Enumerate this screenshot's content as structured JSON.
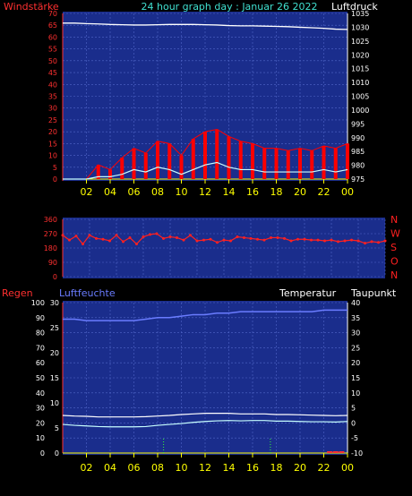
{
  "header": {
    "left_label": "Windstärke",
    "center_title": "24 hour graph day : Januar 26 2022",
    "right_label": "Luftdruck"
  },
  "colors": {
    "background": "#000000",
    "plot_bg": "#1a2d8c",
    "grid": "#5066c8",
    "hour_ticks": "#ffff00",
    "wind_axis": "#ff3030",
    "wind_gust": "#ff0000",
    "wind_avg": "#c8ffff",
    "pressure": "#ffffff",
    "direction_labels": "#ff2020",
    "humidity": "#6a7cff",
    "temperature": "#ffffff",
    "dewpoint": "#c8ffff",
    "rain": "#33ff33"
  },
  "chart_data": [
    {
      "type": "line",
      "name_left_axis": "Windstärke",
      "name_right_axis": "Luftdruck",
      "x_ticks": [
        "02",
        "04",
        "06",
        "08",
        "10",
        "12",
        "14",
        "16",
        "18",
        "20",
        "22",
        "00"
      ],
      "left_ylim": [
        0,
        70
      ],
      "left_ticks": [
        "0",
        "5",
        "10",
        "15",
        "20",
        "25",
        "30",
        "35",
        "40",
        "45",
        "50",
        "55",
        "60",
        "65",
        "70"
      ],
      "right_ylim": [
        975,
        1035
      ],
      "right_ticks": [
        "975",
        "980",
        "985",
        "990",
        "995",
        "1000",
        "1005",
        "1010",
        "1015",
        "1020",
        "1025",
        "1030",
        "1035"
      ],
      "series": [
        {
          "key": "pressure",
          "axis": "right",
          "x": [
            0,
            1,
            2,
            3,
            4,
            5,
            6,
            7,
            8,
            9,
            10,
            11,
            12,
            13,
            14,
            15,
            16,
            17,
            18,
            19,
            20,
            21,
            22,
            23,
            24
          ],
          "values": [
            1031.5,
            1031.5,
            1031.3,
            1031.2,
            1031.0,
            1030.9,
            1030.8,
            1030.8,
            1030.9,
            1031.0,
            1031.0,
            1031.0,
            1030.9,
            1030.8,
            1030.6,
            1030.5,
            1030.5,
            1030.4,
            1030.3,
            1030.2,
            1030.0,
            1029.8,
            1029.6,
            1029.3,
            1029.2
          ]
        },
        {
          "key": "gust",
          "axis": "left",
          "x": [
            0,
            1,
            2,
            3,
            4,
            5,
            6,
            7,
            8,
            9,
            10,
            11,
            12,
            13,
            14,
            15,
            16,
            17,
            18,
            19,
            20,
            21,
            22,
            23,
            24
          ],
          "values": [
            0,
            0,
            0,
            6,
            4,
            9,
            13,
            11,
            16,
            15,
            10,
            17,
            20,
            21,
            18,
            16,
            15,
            13,
            13,
            12,
            13,
            12,
            14,
            13,
            15
          ]
        },
        {
          "key": "average",
          "axis": "left",
          "x": [
            0,
            1,
            2,
            3,
            4,
            5,
            6,
            7,
            8,
            9,
            10,
            11,
            12,
            13,
            14,
            15,
            16,
            17,
            18,
            19,
            20,
            21,
            22,
            23,
            24
          ],
          "values": [
            0,
            0,
            0,
            1,
            1,
            2,
            4,
            3,
            5,
            4,
            2,
            4,
            6,
            7,
            5,
            4,
            4,
            3,
            3,
            3,
            3,
            3,
            4,
            3,
            4
          ]
        }
      ]
    },
    {
      "type": "scatter",
      "name_right_axis_labels": [
        "N",
        "W",
        "S",
        "O",
        "N"
      ],
      "x_ticks": [
        "02",
        "04",
        "06",
        "08",
        "10",
        "12",
        "14",
        "16",
        "18",
        "20",
        "22",
        "00"
      ],
      "ylim": [
        0,
        360
      ],
      "yticks": [
        "0",
        "90",
        "180",
        "270",
        "360"
      ],
      "series": [
        {
          "key": "direction",
          "x": [
            0,
            0.5,
            1,
            1.5,
            2,
            2.5,
            3,
            3.5,
            4,
            4.5,
            5,
            5.5,
            6,
            6.5,
            7,
            7.5,
            8,
            8.5,
            9,
            9.5,
            10,
            10.5,
            11,
            11.5,
            12,
            12.5,
            13,
            13.5,
            14,
            14.5,
            15,
            15.5,
            16,
            16.5,
            17,
            17.5,
            18,
            18.5,
            19,
            19.5,
            20,
            20.5,
            21,
            21.5,
            22,
            22.5,
            23,
            23.5,
            24
          ],
          "values": [
            260,
            230,
            255,
            205,
            260,
            240,
            235,
            225,
            260,
            220,
            245,
            205,
            250,
            265,
            270,
            240,
            250,
            245,
            230,
            260,
            225,
            230,
            235,
            215,
            230,
            225,
            250,
            245,
            240,
            235,
            230,
            245,
            245,
            240,
            225,
            235,
            235,
            230,
            230,
            225,
            230,
            220,
            225,
            230,
            225,
            210,
            220,
            215,
            225
          ]
        }
      ]
    },
    {
      "type": "line",
      "name_left_axis_1": "Regen",
      "name_left_axis_2": "Luftfeuchte",
      "name_right_axis_1": "Temperatur",
      "name_right_axis_2": "Taupunkt",
      "x_ticks": [
        "02",
        "04",
        "06",
        "08",
        "10",
        "12",
        "14",
        "16",
        "18",
        "20",
        "22",
        "00"
      ],
      "humidity_ylim": [
        0,
        100
      ],
      "humidity_ticks": [
        "0",
        "10",
        "20",
        "30",
        "40",
        "50",
        "60",
        "70",
        "80",
        "90",
        "100"
      ],
      "rain_ylim": [
        0,
        30
      ],
      "rain_ticks": [
        "0",
        "5",
        "10",
        "15",
        "20",
        "25",
        "30"
      ],
      "temp_ylim": [
        -10,
        40
      ],
      "temp_ticks": [
        "-10",
        "-5",
        "0",
        "5",
        "10",
        "15",
        "20",
        "25",
        "30",
        "35",
        "40"
      ],
      "series": [
        {
          "key": "humidity",
          "x": [
            0,
            1,
            2,
            3,
            4,
            5,
            6,
            7,
            8,
            9,
            10,
            11,
            12,
            13,
            14,
            15,
            16,
            17,
            18,
            19,
            20,
            21,
            22,
            23,
            24
          ],
          "values": [
            89,
            89,
            88,
            88,
            88,
            88,
            88,
            89,
            90,
            90,
            91,
            92,
            92,
            93,
            93,
            94,
            94,
            94,
            94,
            94,
            94,
            94,
            95,
            95,
            95
          ]
        },
        {
          "key": "temperature",
          "x": [
            0,
            1,
            2,
            3,
            4,
            5,
            6,
            7,
            8,
            9,
            10,
            11,
            12,
            13,
            14,
            15,
            16,
            17,
            18,
            19,
            20,
            21,
            22,
            23,
            24
          ],
          "values": [
            2.5,
            2.3,
            2.2,
            2.0,
            2.0,
            2.0,
            2.0,
            2.1,
            2.3,
            2.5,
            2.8,
            3.0,
            3.2,
            3.2,
            3.2,
            3.0,
            3.0,
            3.0,
            2.8,
            2.8,
            2.7,
            2.6,
            2.5,
            2.4,
            2.5
          ]
        },
        {
          "key": "dewpoint",
          "x": [
            0,
            1,
            2,
            3,
            4,
            5,
            6,
            7,
            8,
            9,
            10,
            11,
            12,
            13,
            14,
            15,
            16,
            17,
            18,
            19,
            20,
            21,
            22,
            23,
            24
          ],
          "values": [
            -0.5,
            -0.8,
            -1.0,
            -1.2,
            -1.3,
            -1.3,
            -1.3,
            -1.2,
            -0.8,
            -0.5,
            -0.2,
            0.2,
            0.5,
            0.7,
            0.8,
            0.7,
            0.8,
            0.8,
            0.6,
            0.6,
            0.5,
            0.4,
            0.4,
            0.3,
            0.5
          ]
        },
        {
          "key": "rain_markers",
          "x": [
            8.5,
            17.5,
            22.5,
            23.0,
            23.5
          ],
          "values": [
            0.3,
            0.3,
            0.1,
            0.1,
            0.1
          ]
        }
      ]
    }
  ]
}
